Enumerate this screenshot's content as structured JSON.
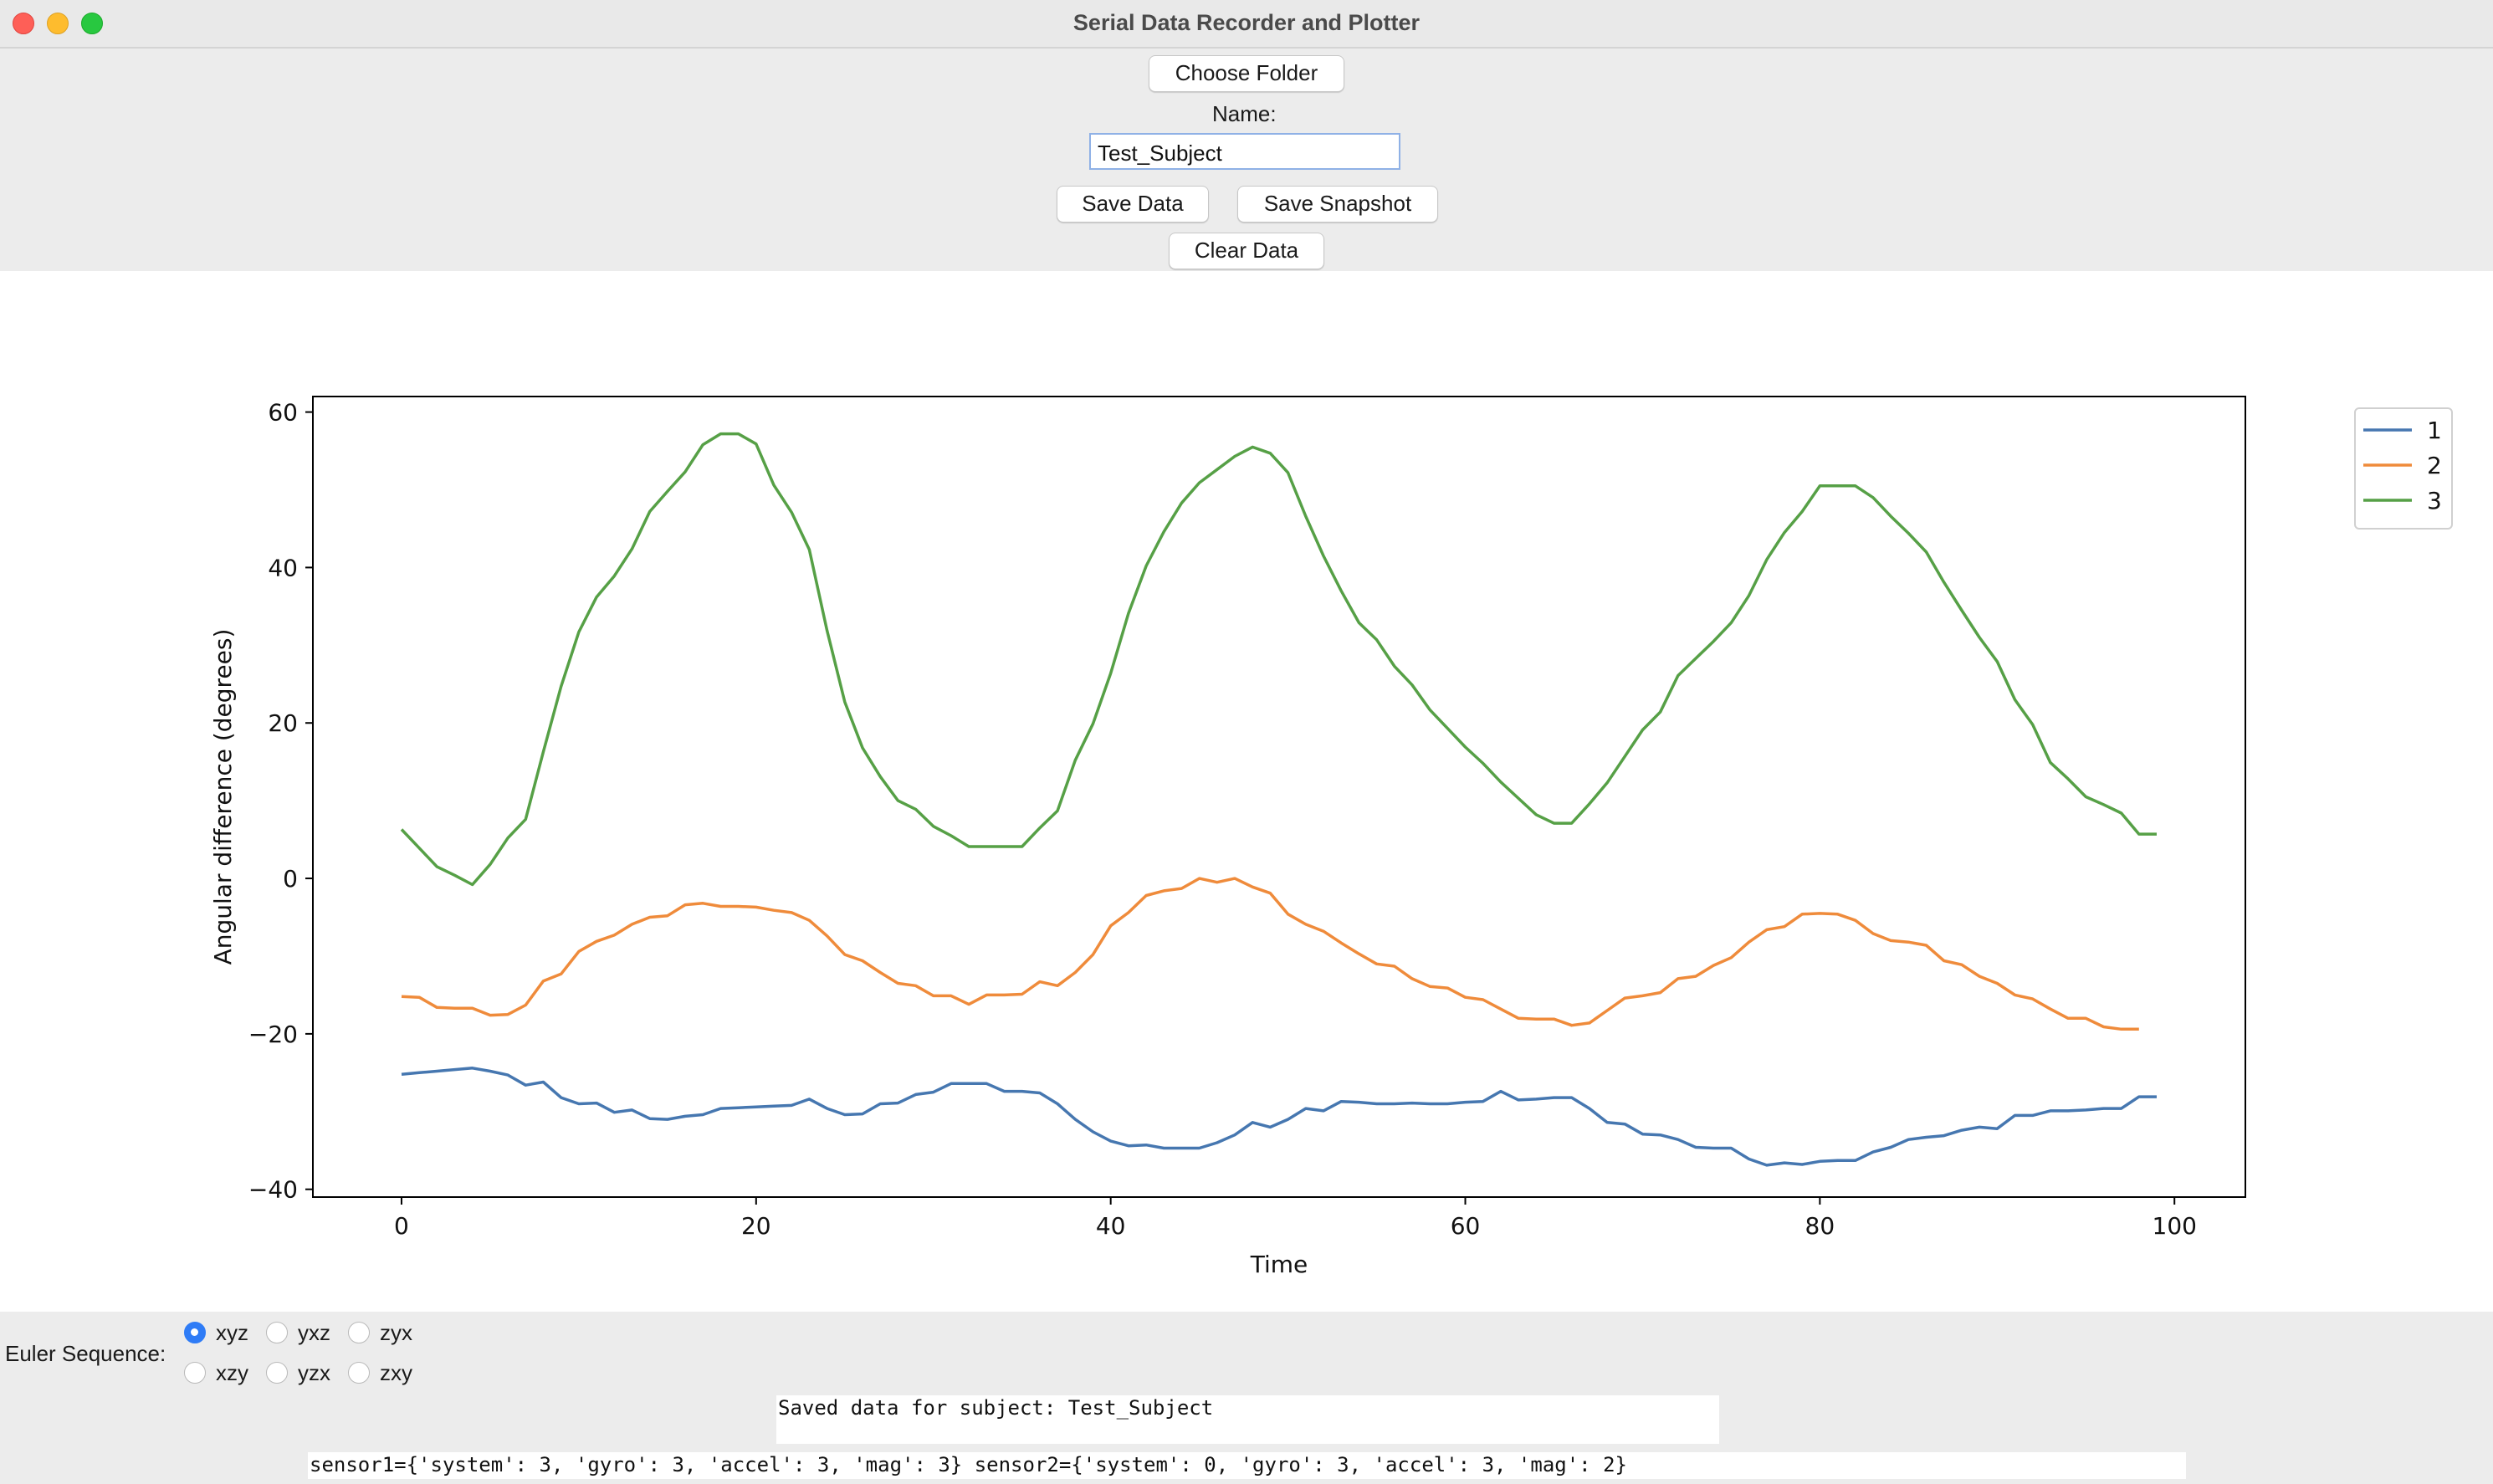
{
  "window": {
    "title": "Serial Data Recorder and Plotter"
  },
  "controls": {
    "choose_folder": "Choose Folder",
    "name_label": "Name:",
    "name_value": "Test_Subject",
    "save_data": "Save Data",
    "save_snapshot": "Save Snapshot",
    "clear_data": "Clear Data"
  },
  "euler": {
    "label": "Euler Sequence:",
    "options": [
      "xyz",
      "yxz",
      "zyx",
      "xzy",
      "yzx",
      "zxy"
    ],
    "selected": "xyz"
  },
  "status": {
    "message": "Saved data for subject: Test_Subject",
    "sensors": "sensor1={'system': 3, 'gyro': 3, 'accel': 3, 'mag': 3} sensor2={'system': 0, 'gyro': 3, 'accel': 3, 'mag': 2}"
  },
  "chart_data": {
    "type": "line",
    "title": "",
    "xlabel": "Time",
    "ylabel": "Angular difference (degrees)",
    "xlim": [
      -5,
      104
    ],
    "ylim": [
      -41,
      62
    ],
    "xticks": [
      0,
      20,
      40,
      60,
      80,
      100
    ],
    "yticks": [
      -40,
      -20,
      0,
      20,
      40,
      60
    ],
    "legend_position": "outside-right",
    "grid": false,
    "series": [
      {
        "name": "1",
        "color": "#4677b0",
        "values": [
          -25.2,
          -25,
          -24.8,
          -24.6,
          -24.4,
          -24.8,
          -25.3,
          -26.6,
          -26.2,
          -28.2,
          -29,
          -28.9,
          -30.1,
          -29.8,
          -30.9,
          -31,
          -30.6,
          -30.4,
          -29.6,
          -29.5,
          -29.4,
          -29.3,
          -29.2,
          -28.4,
          -29.6,
          -30.4,
          -30.3,
          -29,
          -28.9,
          -27.8,
          -27.5,
          -26.4,
          -26.4,
          -26.4,
          -27.4,
          -27.4,
          -27.6,
          -29,
          -31,
          -32.6,
          -33.8,
          -34.4,
          -34.3,
          -34.7,
          -34.7,
          -34.7,
          -34,
          -33,
          -31.4,
          -32,
          -31,
          -29.6,
          -29.9,
          -28.7,
          -28.8,
          -29,
          -29,
          -28.9,
          -29,
          -29,
          -28.8,
          -28.7,
          -27.4,
          -28.5,
          -28.4,
          -28.2,
          -28.2,
          -29.6,
          -31.4,
          -31.6,
          -32.9,
          -33,
          -33.6,
          -34.6,
          -34.7,
          -34.7,
          -36.1,
          -36.9,
          -36.6,
          -36.8,
          -36.4,
          -36.3,
          -36.3,
          -35.2,
          -34.6,
          -33.6,
          -33.3,
          -33.1,
          -32.4,
          -32,
          -32.2,
          -30.5,
          -30.5,
          -29.9,
          -29.9,
          -29.8,
          -29.6,
          -29.6,
          -28.1,
          -28.1
        ]
      },
      {
        "name": "2",
        "color": "#ef8b3b",
        "values": [
          -15.2,
          -15.3,
          -16.6,
          -16.7,
          -16.7,
          -17.6,
          -17.5,
          -16.3,
          -13.2,
          -12.3,
          -9.4,
          -8.1,
          -7.3,
          -5.9,
          -5,
          -4.8,
          -3.4,
          -3.2,
          -3.6,
          -3.6,
          -3.7,
          -4.1,
          -4.4,
          -5.4,
          -7.4,
          -9.8,
          -10.6,
          -12.1,
          -13.5,
          -13.8,
          -15.1,
          -15.1,
          -16.2,
          -15,
          -15,
          -14.9,
          -13.3,
          -13.8,
          -12.1,
          -9.8,
          -6.1,
          -4.4,
          -2.2,
          -1.6,
          -1.3,
          0,
          -0.5,
          0,
          -1.1,
          -1.9,
          -4.6,
          -5.9,
          -6.8,
          -8.3,
          -9.7,
          -11,
          -11.3,
          -12.9,
          -13.9,
          -14.1,
          -15.3,
          -15.6,
          -16.8,
          -18,
          -18.1,
          -18.1,
          -18.9,
          -18.6,
          -17,
          -15.4,
          -15.1,
          -14.7,
          -12.9,
          -12.6,
          -11.2,
          -10.2,
          -8.2,
          -6.6,
          -6.2,
          -4.6,
          -4.5,
          -4.6,
          -5.4,
          -7.1,
          -8,
          -8.2,
          -8.6,
          -10.6,
          -11.1,
          -12.6,
          -13.5,
          -15,
          -15.5,
          -16.8,
          -18,
          -18,
          -19.1,
          -19.4,
          -19.4
        ]
      },
      {
        "name": "3",
        "color": "#56a046",
        "values": [
          6.3,
          3.9,
          1.5,
          0.4,
          -0.8,
          1.8,
          5.2,
          7.6,
          16.3,
          24.7,
          31.7,
          36.2,
          38.9,
          42.4,
          47.2,
          49.8,
          52.3,
          55.8,
          57.2,
          57.2,
          55.9,
          50.6,
          47.1,
          42.3,
          31.9,
          22.7,
          16.8,
          13.1,
          10,
          8.9,
          6.7,
          5.5,
          4.1,
          4.1,
          4.1,
          4.1,
          6.5,
          8.7,
          15.2,
          19.9,
          26.4,
          34.1,
          40.2,
          44.6,
          48.3,
          50.9,
          52.6,
          54.3,
          55.5,
          54.7,
          52.2,
          46.6,
          41.5,
          37,
          32.9,
          30.7,
          27.3,
          24.9,
          21.7,
          19.3,
          16.9,
          14.8,
          12.4,
          10.3,
          8.2,
          7.1,
          7.1,
          9.6,
          12.3,
          15.7,
          19.1,
          21.4,
          26.1,
          28.3,
          30.5,
          32.9,
          36.4,
          41,
          44.5,
          47.2,
          50.5,
          50.5,
          50.5,
          49,
          46.6,
          44.4,
          42,
          38.1,
          34.5,
          31,
          27.9,
          23,
          19.8,
          14.9,
          12.8,
          10.5,
          9.5,
          8.4,
          5.7,
          5.7
        ]
      }
    ]
  }
}
